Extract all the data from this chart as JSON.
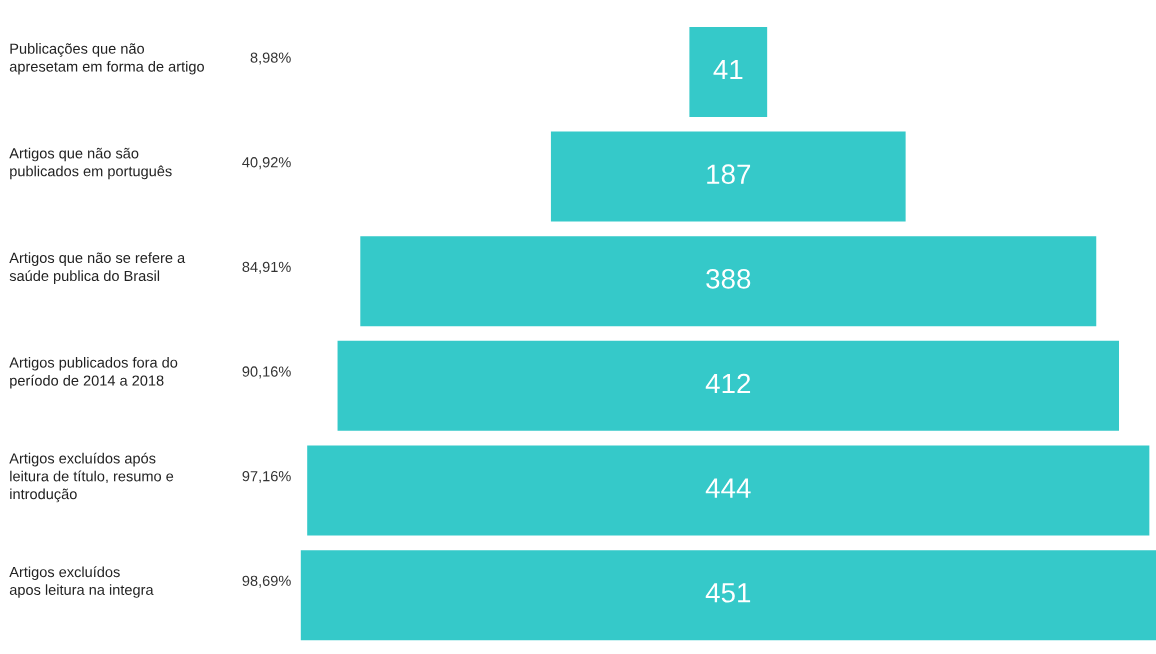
{
  "chart_data": {
    "type": "other",
    "categories": [
      "Publicações que não\napresetam em forma de artigo",
      "Artigos que não são\npublicados em português",
      "Artigos que não se refere a\nsaúde publica do Brasil",
      "Artigos publicados fora do\nperíodo de 2014 a 2018",
      "Artigos excluídos após\nleitura de título, resumo e\nintrodução",
      "Artigos excluídos\napos leitura na integra"
    ],
    "series": [
      {
        "type": "bar",
        "color": "#35c9c9",
        "values": [
          41,
          187,
          388,
          412,
          444,
          451
        ]
      },
      {
        "type": "other",
        "values": [
          8.98,
          40.92,
          84.91,
          90.16,
          97.16,
          98.69
        ],
        "value_labels": [
          "8,98%",
          "40,92%",
          "84,91%",
          "90,16%",
          "97,16%",
          "98,69%"
        ]
      }
    ],
    "data_labels": true
  }
}
